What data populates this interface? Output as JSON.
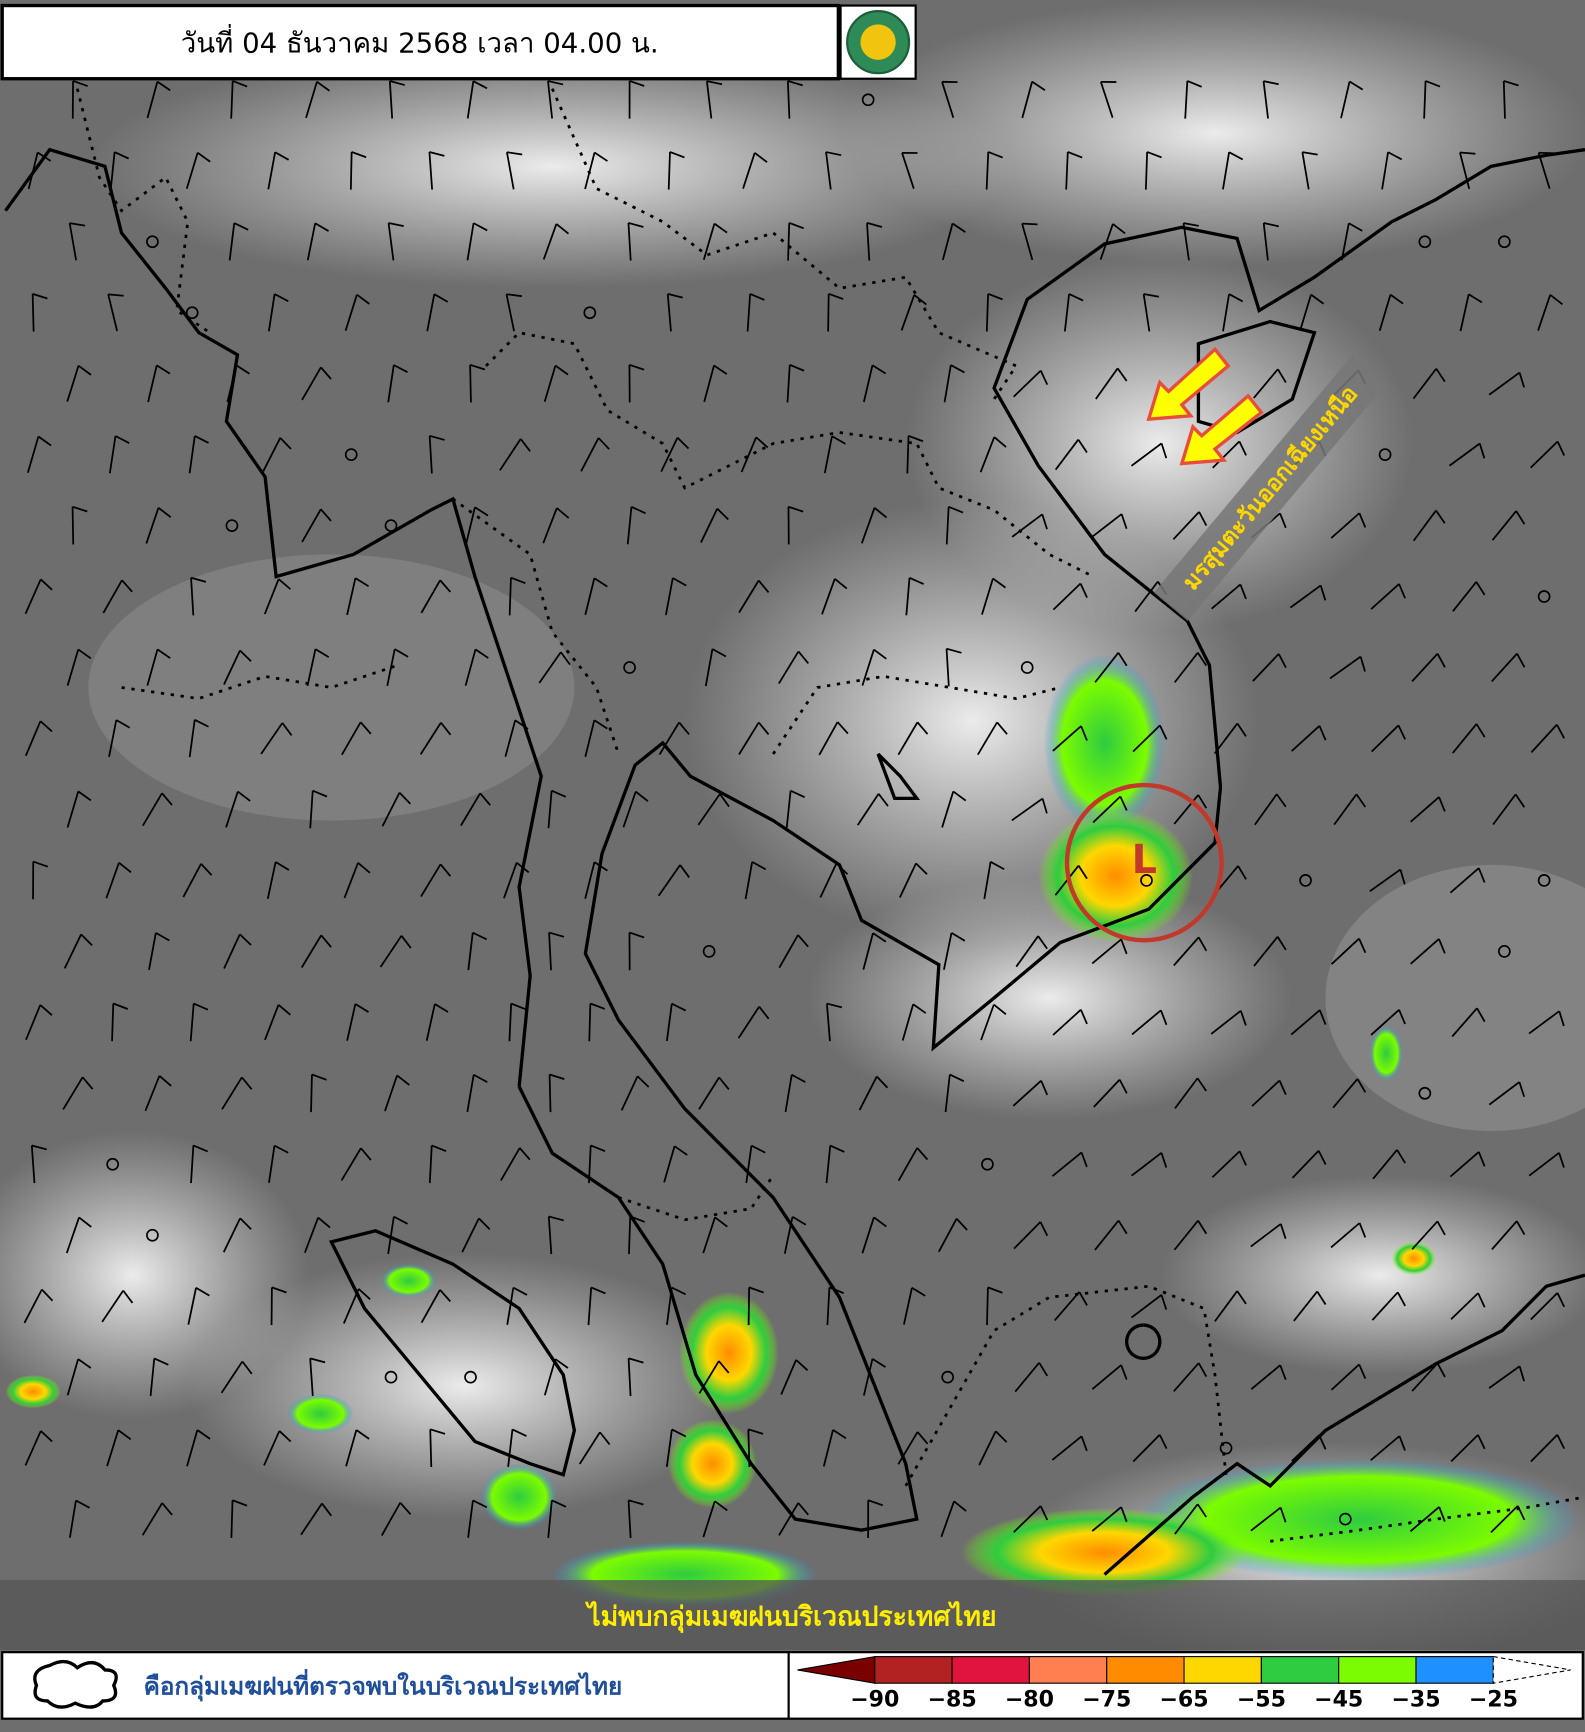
{
  "header": {
    "title": "วันที่ 04 ธันวาคม 2568 เวลา 04.00 น."
  },
  "map": {
    "annotation": "มรสุมตะวันออกเฉียงเหนือ",
    "low_pressure_label": "L",
    "banner": "ไม่พบกลุ่มเมฆฝนบริเวณประเทศไทย"
  },
  "legend": {
    "cloud_text": "คือกลุ่มเมฆฝนที่ตรวจพบในบริเวณประเทศไทย",
    "colors": [
      "#7a0000",
      "#b22222",
      "#e0143c",
      "#ff7f50",
      "#ff8c00",
      "#ffd700",
      "#2ecc40",
      "#7cfc00",
      "#1e90ff",
      "#ffffff"
    ],
    "scale_labels": [
      "−90",
      "−85",
      "−80",
      "−75",
      "−65",
      "−55",
      "−45",
      "−35",
      "−25"
    ]
  }
}
